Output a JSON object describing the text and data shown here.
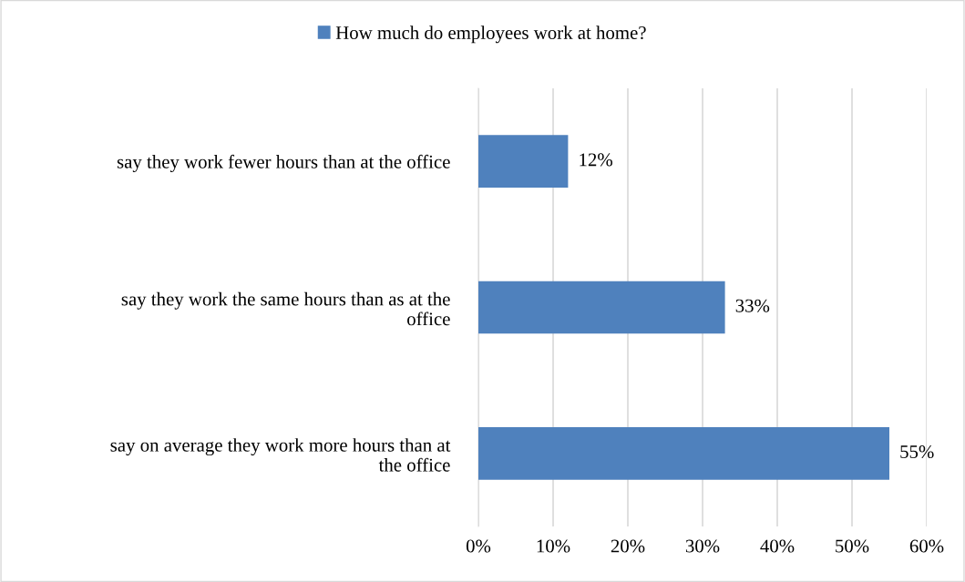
{
  "chart_data": {
    "type": "bar",
    "orientation": "horizontal",
    "categories": [
      "say they work fewer hours than at the office",
      "say they work the same hours than as at the office",
      "say on average they work more hours than at the office"
    ],
    "series": [
      {
        "name": "How much do employees work at home?",
        "color": "#4f81bd",
        "values": [
          12,
          33,
          55
        ],
        "value_labels": [
          "12%",
          "33%",
          "55%"
        ]
      }
    ],
    "xlim": [
      0,
      60
    ],
    "xticks": [
      {
        "value": 0,
        "label": "0%"
      },
      {
        "value": 10,
        "label": "10%"
      },
      {
        "value": 20,
        "label": "20%"
      },
      {
        "value": 30,
        "label": "30%"
      },
      {
        "value": 40,
        "label": "40%"
      },
      {
        "value": 50,
        "label": "50%"
      },
      {
        "value": 60,
        "label": "60%"
      }
    ],
    "grid": "x",
    "legend": "top"
  }
}
